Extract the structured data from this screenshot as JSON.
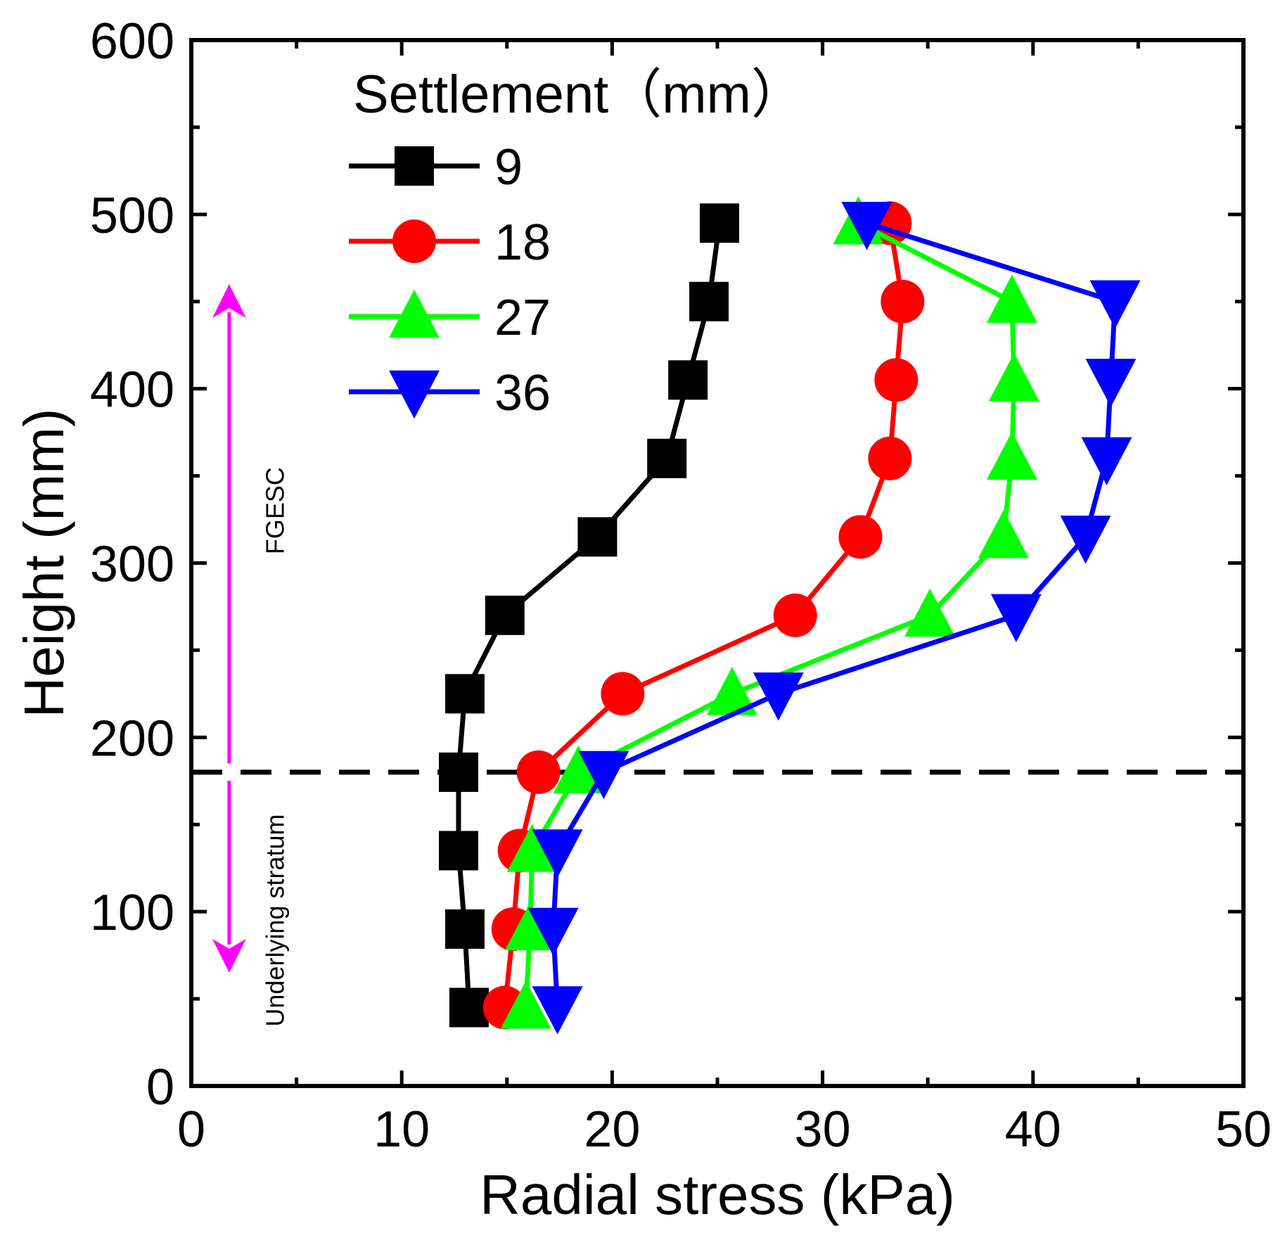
{
  "chart_data": {
    "type": "line",
    "title": "",
    "xlabel": "Radial stress  (kPa)",
    "ylabel": "Height (mm)",
    "xlim": [
      0,
      50
    ],
    "ylim": [
      0,
      600
    ],
    "xticks": [
      0,
      10,
      20,
      30,
      40,
      50
    ],
    "yticks": [
      0,
      100,
      200,
      300,
      400,
      500,
      600
    ],
    "x_minor_step": 5,
    "y_minor_step": 50,
    "legend": {
      "title": "Settlement（mm）",
      "position": "top-left"
    },
    "series": [
      {
        "name": "9",
        "color": "#000000",
        "marker": "square",
        "points": [
          {
            "x": 13.2,
            "y": 45
          },
          {
            "x": 13.0,
            "y": 90
          },
          {
            "x": 12.7,
            "y": 135
          },
          {
            "x": 12.7,
            "y": 180
          },
          {
            "x": 13.0,
            "y": 225
          },
          {
            "x": 14.9,
            "y": 270
          },
          {
            "x": 19.3,
            "y": 315
          },
          {
            "x": 22.6,
            "y": 360
          },
          {
            "x": 23.6,
            "y": 405
          },
          {
            "x": 24.6,
            "y": 450
          },
          {
            "x": 25.1,
            "y": 495
          }
        ]
      },
      {
        "name": "18",
        "color": "#ff0000",
        "marker": "circle",
        "points": [
          {
            "x": 14.9,
            "y": 45
          },
          {
            "x": 15.3,
            "y": 90
          },
          {
            "x": 15.6,
            "y": 135
          },
          {
            "x": 16.5,
            "y": 180
          },
          {
            "x": 20.5,
            "y": 225
          },
          {
            "x": 28.7,
            "y": 270
          },
          {
            "x": 31.8,
            "y": 315
          },
          {
            "x": 33.2,
            "y": 360
          },
          {
            "x": 33.5,
            "y": 405
          },
          {
            "x": 33.8,
            "y": 450
          },
          {
            "x": 33.2,
            "y": 495
          }
        ]
      },
      {
        "name": "27",
        "color": "#00ff00",
        "marker": "triangle-up",
        "points": [
          {
            "x": 15.9,
            "y": 45
          },
          {
            "x": 16.1,
            "y": 90
          },
          {
            "x": 16.2,
            "y": 135
          },
          {
            "x": 18.4,
            "y": 180
          },
          {
            "x": 25.7,
            "y": 225
          },
          {
            "x": 35.1,
            "y": 270
          },
          {
            "x": 38.6,
            "y": 315
          },
          {
            "x": 39.0,
            "y": 360
          },
          {
            "x": 39.1,
            "y": 405
          },
          {
            "x": 39.0,
            "y": 450
          },
          {
            "x": 31.7,
            "y": 495
          }
        ]
      },
      {
        "name": "36",
        "color": "#0000ff",
        "marker": "triangle-down",
        "points": [
          {
            "x": 17.4,
            "y": 45
          },
          {
            "x": 17.2,
            "y": 90
          },
          {
            "x": 17.4,
            "y": 135
          },
          {
            "x": 19.6,
            "y": 180
          },
          {
            "x": 27.9,
            "y": 225
          },
          {
            "x": 39.2,
            "y": 270
          },
          {
            "x": 42.5,
            "y": 315
          },
          {
            "x": 43.5,
            "y": 360
          },
          {
            "x": 43.7,
            "y": 405
          },
          {
            "x": 43.9,
            "y": 450
          },
          {
            "x": 32.1,
            "y": 495
          }
        ]
      }
    ],
    "reference_line": {
      "y": 180,
      "style": "dashed",
      "color": "#000000"
    },
    "zone_arrow": {
      "x": 1.8,
      "color": "#ff00ff",
      "top_y": 460,
      "bottom_y": 65,
      "break_top_y": 185,
      "break_bottom_y": 175
    },
    "annotations": [
      {
        "text": "FGESC",
        "x": 4.0,
        "y": 330
      },
      {
        "text": "Underlying stratum",
        "x": 4.0,
        "y": 95
      }
    ]
  }
}
